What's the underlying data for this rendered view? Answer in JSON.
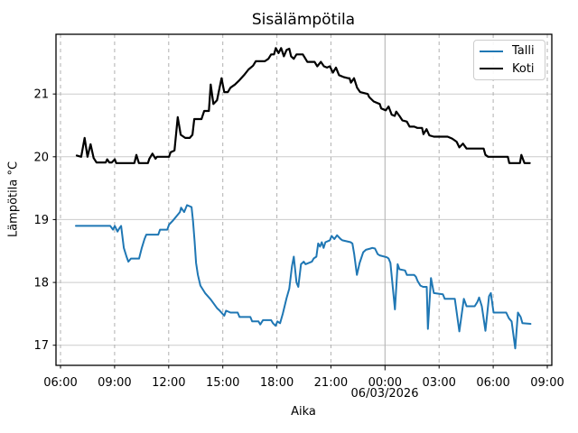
{
  "chart_data": {
    "type": "line",
    "title": "Sisälämpötila",
    "xlabel": "Aika",
    "ylabel": "Lämpötila °C",
    "legend_position": "upper right",
    "grid": {
      "y_color": "#cccccc",
      "x_major_color": "#b5b5b5",
      "x_minor_color": "#b0b0b0",
      "x_minor_dash": "4,4"
    },
    "x_axis": {
      "unit": "hours since 06:00 on 05/03/2026",
      "lim": [
        -0.25,
        27.25
      ],
      "ticks": [
        {
          "h": 0,
          "label": "06:00",
          "major": false
        },
        {
          "h": 3,
          "label": "09:00",
          "major": false
        },
        {
          "h": 6,
          "label": "12:00",
          "major": false
        },
        {
          "h": 9,
          "label": "15:00",
          "major": false
        },
        {
          "h": 12,
          "label": "18:00",
          "major": false
        },
        {
          "h": 15,
          "label": "21:00",
          "major": false
        },
        {
          "h": 18,
          "label": "00:00",
          "major": true
        },
        {
          "h": 21,
          "label": "03:00",
          "major": false
        },
        {
          "h": 24,
          "label": "06:00",
          "major": false
        },
        {
          "h": 27,
          "label": "09:00",
          "major": false
        }
      ],
      "date_label": {
        "text": "06/03/2026",
        "at_hour": 18
      }
    },
    "y_axis": {
      "lim": [
        16.68,
        21.95
      ],
      "ticks": [
        17,
        18,
        19,
        20,
        21
      ]
    },
    "series": [
      {
        "name": "Talli",
        "color": "#1f77b4",
        "width": 2,
        "points": [
          [
            0.85,
            18.9
          ],
          [
            2.76,
            18.9
          ],
          [
            2.91,
            18.84
          ],
          [
            3.01,
            18.9
          ],
          [
            3.16,
            18.81
          ],
          [
            3.26,
            18.86
          ],
          [
            3.36,
            18.9
          ],
          [
            3.51,
            18.55
          ],
          [
            3.66,
            18.41
          ],
          [
            3.76,
            18.33
          ],
          [
            3.91,
            18.38
          ],
          [
            4.36,
            18.38
          ],
          [
            4.51,
            18.55
          ],
          [
            4.66,
            18.69
          ],
          [
            4.76,
            18.76
          ],
          [
            5.42,
            18.76
          ],
          [
            5.52,
            18.84
          ],
          [
            5.92,
            18.84
          ],
          [
            6.02,
            18.92
          ],
          [
            6.22,
            18.98
          ],
          [
            6.42,
            19.05
          ],
          [
            6.62,
            19.12
          ],
          [
            6.69,
            19.19
          ],
          [
            6.86,
            19.12
          ],
          [
            7.02,
            19.23
          ],
          [
            7.27,
            19.2
          ],
          [
            7.35,
            18.98
          ],
          [
            7.44,
            18.65
          ],
          [
            7.52,
            18.31
          ],
          [
            7.62,
            18.12
          ],
          [
            7.76,
            17.95
          ],
          [
            8.02,
            17.83
          ],
          [
            8.33,
            17.73
          ],
          [
            8.68,
            17.59
          ],
          [
            8.83,
            17.55
          ],
          [
            9.08,
            17.47
          ],
          [
            9.18,
            17.55
          ],
          [
            9.43,
            17.52
          ],
          [
            9.83,
            17.52
          ],
          [
            9.93,
            17.45
          ],
          [
            10.53,
            17.45
          ],
          [
            10.63,
            17.38
          ],
          [
            10.98,
            17.38
          ],
          [
            11.08,
            17.33
          ],
          [
            11.23,
            17.4
          ],
          [
            11.68,
            17.4
          ],
          [
            11.78,
            17.35
          ],
          [
            11.93,
            17.31
          ],
          [
            12.03,
            17.38
          ],
          [
            12.18,
            17.35
          ],
          [
            12.33,
            17.5
          ],
          [
            12.54,
            17.75
          ],
          [
            12.69,
            17.9
          ],
          [
            12.84,
            18.26
          ],
          [
            12.94,
            18.41
          ],
          [
            13.09,
            18.0
          ],
          [
            13.19,
            17.93
          ],
          [
            13.34,
            18.29
          ],
          [
            13.49,
            18.33
          ],
          [
            13.59,
            18.29
          ],
          [
            13.94,
            18.33
          ],
          [
            14.04,
            18.38
          ],
          [
            14.19,
            18.41
          ],
          [
            14.29,
            18.62
          ],
          [
            14.39,
            18.57
          ],
          [
            14.49,
            18.64
          ],
          [
            14.59,
            18.55
          ],
          [
            14.69,
            18.64
          ],
          [
            14.94,
            18.67
          ],
          [
            15.04,
            18.74
          ],
          [
            15.19,
            18.69
          ],
          [
            15.34,
            18.75
          ],
          [
            15.54,
            18.69
          ],
          [
            15.64,
            18.67
          ],
          [
            16.09,
            18.64
          ],
          [
            16.19,
            18.62
          ],
          [
            16.29,
            18.45
          ],
          [
            16.44,
            18.12
          ],
          [
            16.59,
            18.31
          ],
          [
            16.79,
            18.48
          ],
          [
            16.94,
            18.52
          ],
          [
            17.19,
            18.54
          ],
          [
            17.29,
            18.55
          ],
          [
            17.44,
            18.54
          ],
          [
            17.59,
            18.45
          ],
          [
            17.71,
            18.43
          ],
          [
            18.1,
            18.4
          ],
          [
            18.2,
            18.38
          ],
          [
            18.3,
            18.31
          ],
          [
            18.55,
            17.57
          ],
          [
            18.7,
            18.29
          ],
          [
            18.8,
            18.21
          ],
          [
            19.11,
            18.19
          ],
          [
            19.21,
            18.12
          ],
          [
            19.61,
            18.12
          ],
          [
            19.71,
            18.09
          ],
          [
            19.81,
            18.02
          ],
          [
            19.96,
            17.95
          ],
          [
            20.11,
            17.93
          ],
          [
            20.31,
            17.93
          ],
          [
            20.38,
            17.26
          ],
          [
            20.55,
            18.07
          ],
          [
            20.71,
            17.83
          ],
          [
            21.21,
            17.81
          ],
          [
            21.31,
            17.74
          ],
          [
            21.87,
            17.74
          ],
          [
            22.12,
            17.22
          ],
          [
            22.37,
            17.74
          ],
          [
            22.52,
            17.62
          ],
          [
            22.97,
            17.62
          ],
          [
            23.12,
            17.69
          ],
          [
            23.22,
            17.76
          ],
          [
            23.37,
            17.62
          ],
          [
            23.57,
            17.23
          ],
          [
            23.77,
            17.78
          ],
          [
            23.87,
            17.83
          ],
          [
            24.02,
            17.52
          ],
          [
            24.72,
            17.52
          ],
          [
            24.87,
            17.43
          ],
          [
            25.02,
            17.38
          ],
          [
            25.22,
            16.95
          ],
          [
            25.37,
            17.52
          ],
          [
            25.52,
            17.45
          ],
          [
            25.62,
            17.35
          ],
          [
            26.07,
            17.34
          ]
        ]
      },
      {
        "name": "Koti",
        "color": "#000000",
        "width": 2.2,
        "points": [
          [
            0.9,
            20.02
          ],
          [
            1.15,
            20.0
          ],
          [
            1.34,
            20.3
          ],
          [
            1.5,
            20.0
          ],
          [
            1.67,
            20.2
          ],
          [
            1.84,
            19.98
          ],
          [
            2.0,
            19.91
          ],
          [
            2.51,
            19.91
          ],
          [
            2.59,
            19.96
          ],
          [
            2.71,
            19.91
          ],
          [
            2.84,
            19.91
          ],
          [
            3.01,
            19.96
          ],
          [
            3.09,
            19.9
          ],
          [
            4.1,
            19.9
          ],
          [
            4.21,
            20.03
          ],
          [
            4.35,
            19.9
          ],
          [
            4.85,
            19.9
          ],
          [
            4.93,
            19.97
          ],
          [
            5.1,
            20.05
          ],
          [
            5.27,
            19.97
          ],
          [
            5.35,
            20.0
          ],
          [
            6.02,
            20.0
          ],
          [
            6.1,
            20.07
          ],
          [
            6.32,
            20.1
          ],
          [
            6.5,
            20.63
          ],
          [
            6.67,
            20.35
          ],
          [
            6.92,
            20.3
          ],
          [
            7.17,
            20.3
          ],
          [
            7.32,
            20.35
          ],
          [
            7.42,
            20.6
          ],
          [
            7.82,
            20.6
          ],
          [
            7.97,
            20.73
          ],
          [
            8.23,
            20.73
          ],
          [
            8.33,
            21.15
          ],
          [
            8.48,
            20.84
          ],
          [
            8.68,
            20.9
          ],
          [
            8.93,
            21.25
          ],
          [
            9.08,
            21.03
          ],
          [
            9.28,
            21.03
          ],
          [
            9.43,
            21.1
          ],
          [
            9.68,
            21.15
          ],
          [
            9.93,
            21.22
          ],
          [
            10.18,
            21.3
          ],
          [
            10.43,
            21.39
          ],
          [
            10.68,
            21.45
          ],
          [
            10.83,
            21.52
          ],
          [
            11.33,
            21.52
          ],
          [
            11.53,
            21.56
          ],
          [
            11.68,
            21.63
          ],
          [
            11.84,
            21.63
          ],
          [
            11.94,
            21.73
          ],
          [
            12.09,
            21.65
          ],
          [
            12.24,
            21.73
          ],
          [
            12.39,
            21.6
          ],
          [
            12.54,
            21.7
          ],
          [
            12.69,
            21.72
          ],
          [
            12.79,
            21.6
          ],
          [
            12.94,
            21.56
          ],
          [
            13.09,
            21.63
          ],
          [
            13.44,
            21.63
          ],
          [
            13.69,
            21.51
          ],
          [
            14.09,
            21.51
          ],
          [
            14.24,
            21.44
          ],
          [
            14.44,
            21.51
          ],
          [
            14.61,
            21.44
          ],
          [
            14.78,
            21.42
          ],
          [
            14.94,
            21.44
          ],
          [
            15.11,
            21.34
          ],
          [
            15.28,
            21.42
          ],
          [
            15.45,
            21.3
          ],
          [
            15.7,
            21.27
          ],
          [
            15.95,
            21.25
          ],
          [
            16.03,
            21.25
          ],
          [
            16.11,
            21.18
          ],
          [
            16.28,
            21.25
          ],
          [
            16.45,
            21.1
          ],
          [
            16.62,
            21.03
          ],
          [
            17.04,
            21.0
          ],
          [
            17.12,
            20.95
          ],
          [
            17.37,
            20.88
          ],
          [
            17.71,
            20.84
          ],
          [
            17.79,
            20.77
          ],
          [
            18.04,
            20.74
          ],
          [
            18.2,
            20.8
          ],
          [
            18.37,
            20.67
          ],
          [
            18.54,
            20.65
          ],
          [
            18.62,
            20.72
          ],
          [
            18.8,
            20.65
          ],
          [
            18.96,
            20.58
          ],
          [
            19.21,
            20.56
          ],
          [
            19.36,
            20.48
          ],
          [
            19.62,
            20.48
          ],
          [
            19.79,
            20.46
          ],
          [
            20.05,
            20.46
          ],
          [
            20.13,
            20.36
          ],
          [
            20.3,
            20.44
          ],
          [
            20.46,
            20.34
          ],
          [
            20.71,
            20.32
          ],
          [
            21.47,
            20.32
          ],
          [
            21.72,
            20.29
          ],
          [
            21.97,
            20.24
          ],
          [
            22.12,
            20.15
          ],
          [
            22.32,
            20.21
          ],
          [
            22.52,
            20.13
          ],
          [
            23.47,
            20.13
          ],
          [
            23.57,
            20.03
          ],
          [
            23.72,
            20.0
          ],
          [
            24.81,
            20.0
          ],
          [
            24.89,
            19.9
          ],
          [
            25.48,
            19.9
          ],
          [
            25.56,
            20.03
          ],
          [
            25.73,
            19.9
          ],
          [
            26.03,
            19.9
          ]
        ]
      }
    ]
  },
  "legend": {
    "items": [
      {
        "label": "Talli",
        "color": "#1f77b4",
        "line_width": 2
      },
      {
        "label": "Koti",
        "color": "#000000",
        "line_width": 2.2
      }
    ]
  }
}
